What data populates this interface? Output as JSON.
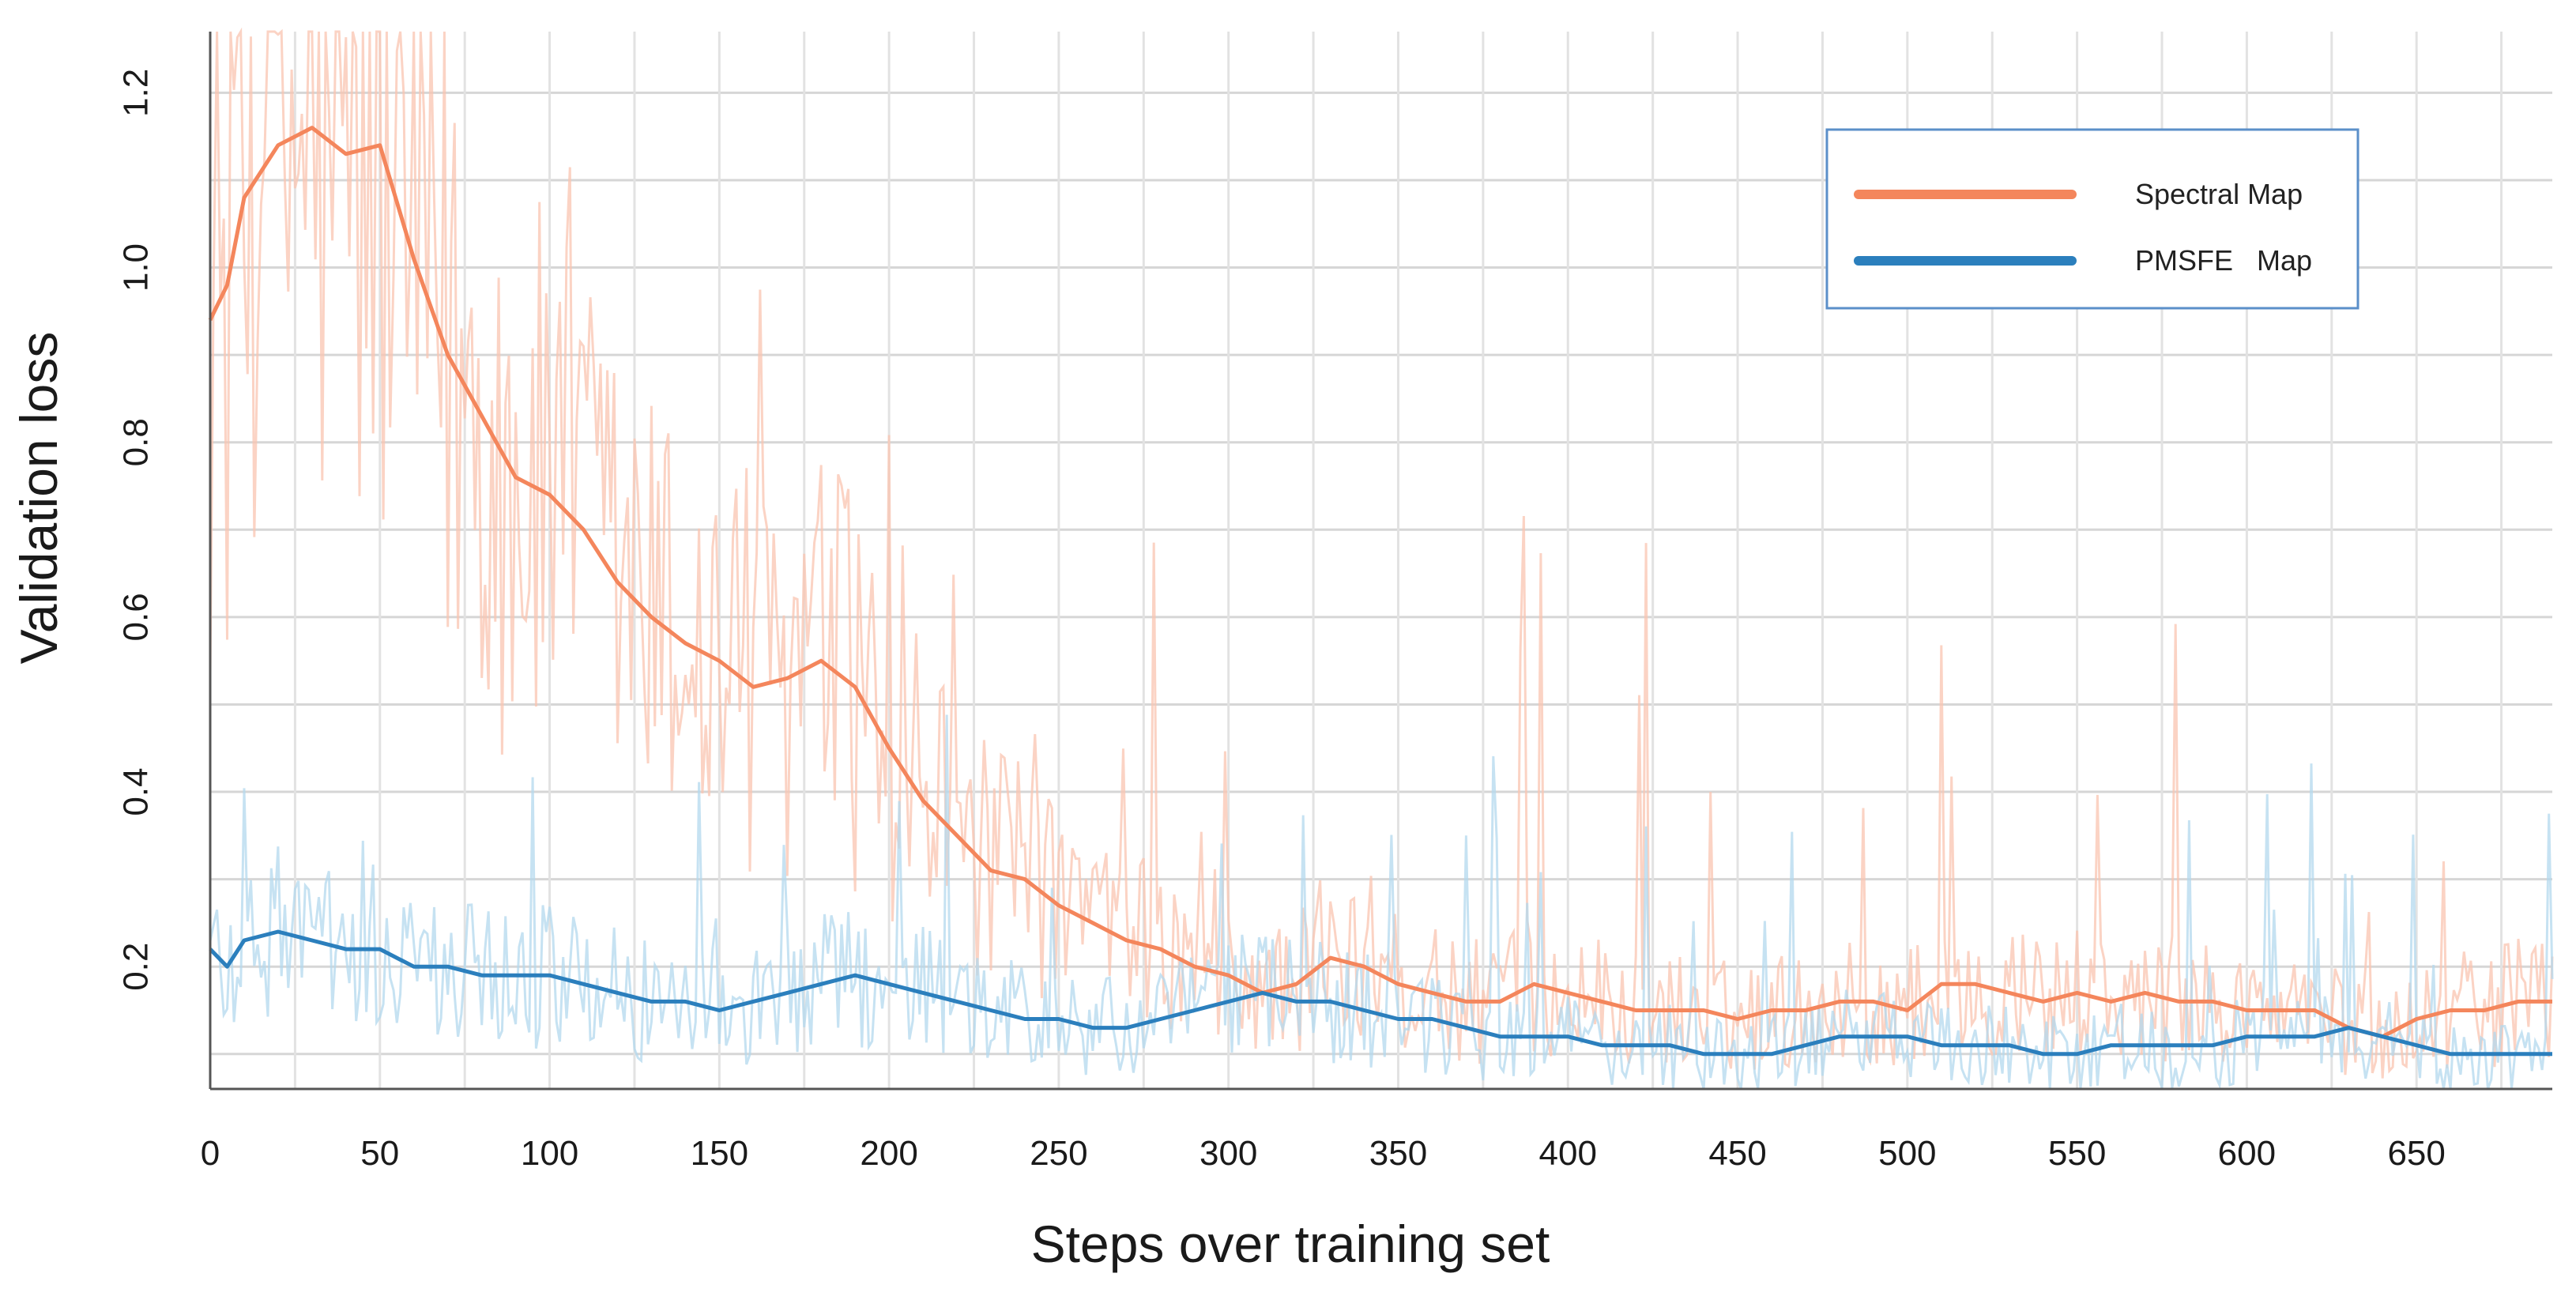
{
  "chart_data": {
    "type": "line",
    "title": "",
    "xlabel": "Steps over training set",
    "ylabel": "Validation loss",
    "xlim": [
      0,
      690
    ],
    "ylim": [
      0.06,
      1.27
    ],
    "x_ticks": [
      0,
      50,
      100,
      150,
      200,
      250,
      300,
      350,
      400,
      450,
      500,
      550,
      600,
      650
    ],
    "y_ticks": [
      0.2,
      0.4,
      0.6,
      0.8,
      1.0,
      1.2
    ],
    "x_tick_labels": [
      "0",
      "50",
      "100",
      "150",
      "200",
      "250",
      "300",
      "350",
      "400",
      "450",
      "500",
      "550",
      "600",
      "650"
    ],
    "y_tick_labels": [
      "0.2",
      "0.4",
      "0.6",
      "0.8",
      "1.0",
      "1.2"
    ],
    "grid": true,
    "legend_position": "top-right",
    "series": [
      {
        "name": "Spectral Map",
        "color": "#f4865c",
        "raw_color": "#f9c4b0",
        "x": [
          0,
          5,
          10,
          20,
          30,
          40,
          50,
          60,
          70,
          80,
          90,
          100,
          110,
          120,
          130,
          140,
          150,
          160,
          170,
          180,
          190,
          200,
          210,
          220,
          230,
          240,
          250,
          260,
          270,
          280,
          290,
          300,
          310,
          320,
          330,
          340,
          350,
          360,
          370,
          380,
          390,
          400,
          410,
          420,
          430,
          440,
          450,
          460,
          470,
          480,
          490,
          500,
          510,
          520,
          530,
          540,
          550,
          560,
          570,
          580,
          590,
          600,
          610,
          620,
          630,
          640,
          650,
          660,
          670,
          680,
          690
        ],
        "values": [
          0.94,
          0.98,
          1.08,
          1.14,
          1.16,
          1.13,
          1.14,
          1.01,
          0.9,
          0.83,
          0.76,
          0.74,
          0.7,
          0.64,
          0.6,
          0.57,
          0.55,
          0.52,
          0.53,
          0.55,
          0.52,
          0.45,
          0.39,
          0.35,
          0.31,
          0.3,
          0.27,
          0.25,
          0.23,
          0.22,
          0.2,
          0.19,
          0.17,
          0.18,
          0.21,
          0.2,
          0.18,
          0.17,
          0.16,
          0.16,
          0.18,
          0.17,
          0.16,
          0.15,
          0.15,
          0.15,
          0.14,
          0.15,
          0.15,
          0.16,
          0.16,
          0.15,
          0.18,
          0.18,
          0.17,
          0.16,
          0.17,
          0.16,
          0.17,
          0.16,
          0.16,
          0.15,
          0.15,
          0.15,
          0.13,
          0.12,
          0.14,
          0.15,
          0.15,
          0.16,
          0.16
        ]
      },
      {
        "name": "PMSFE   Map",
        "color": "#2b7fbd",
        "raw_color": "#b3d8ee",
        "x": [
          0,
          5,
          10,
          20,
          30,
          40,
          50,
          60,
          70,
          80,
          90,
          100,
          110,
          120,
          130,
          140,
          150,
          160,
          170,
          180,
          190,
          200,
          210,
          220,
          230,
          240,
          250,
          260,
          270,
          280,
          290,
          300,
          310,
          320,
          330,
          340,
          350,
          360,
          370,
          380,
          390,
          400,
          410,
          420,
          430,
          440,
          450,
          460,
          470,
          480,
          490,
          500,
          510,
          520,
          530,
          540,
          550,
          560,
          570,
          580,
          590,
          600,
          610,
          620,
          630,
          640,
          650,
          660,
          670,
          680,
          690
        ],
        "values": [
          0.22,
          0.2,
          0.23,
          0.24,
          0.23,
          0.22,
          0.22,
          0.2,
          0.2,
          0.19,
          0.19,
          0.19,
          0.18,
          0.17,
          0.16,
          0.16,
          0.15,
          0.16,
          0.17,
          0.18,
          0.19,
          0.18,
          0.17,
          0.16,
          0.15,
          0.14,
          0.14,
          0.13,
          0.13,
          0.14,
          0.15,
          0.16,
          0.17,
          0.16,
          0.16,
          0.15,
          0.14,
          0.14,
          0.13,
          0.12,
          0.12,
          0.12,
          0.11,
          0.11,
          0.11,
          0.1,
          0.1,
          0.1,
          0.11,
          0.12,
          0.12,
          0.12,
          0.11,
          0.11,
          0.11,
          0.1,
          0.1,
          0.11,
          0.11,
          0.11,
          0.11,
          0.12,
          0.12,
          0.12,
          0.13,
          0.12,
          0.11,
          0.1,
          0.1,
          0.1,
          0.1
        ]
      }
    ]
  }
}
